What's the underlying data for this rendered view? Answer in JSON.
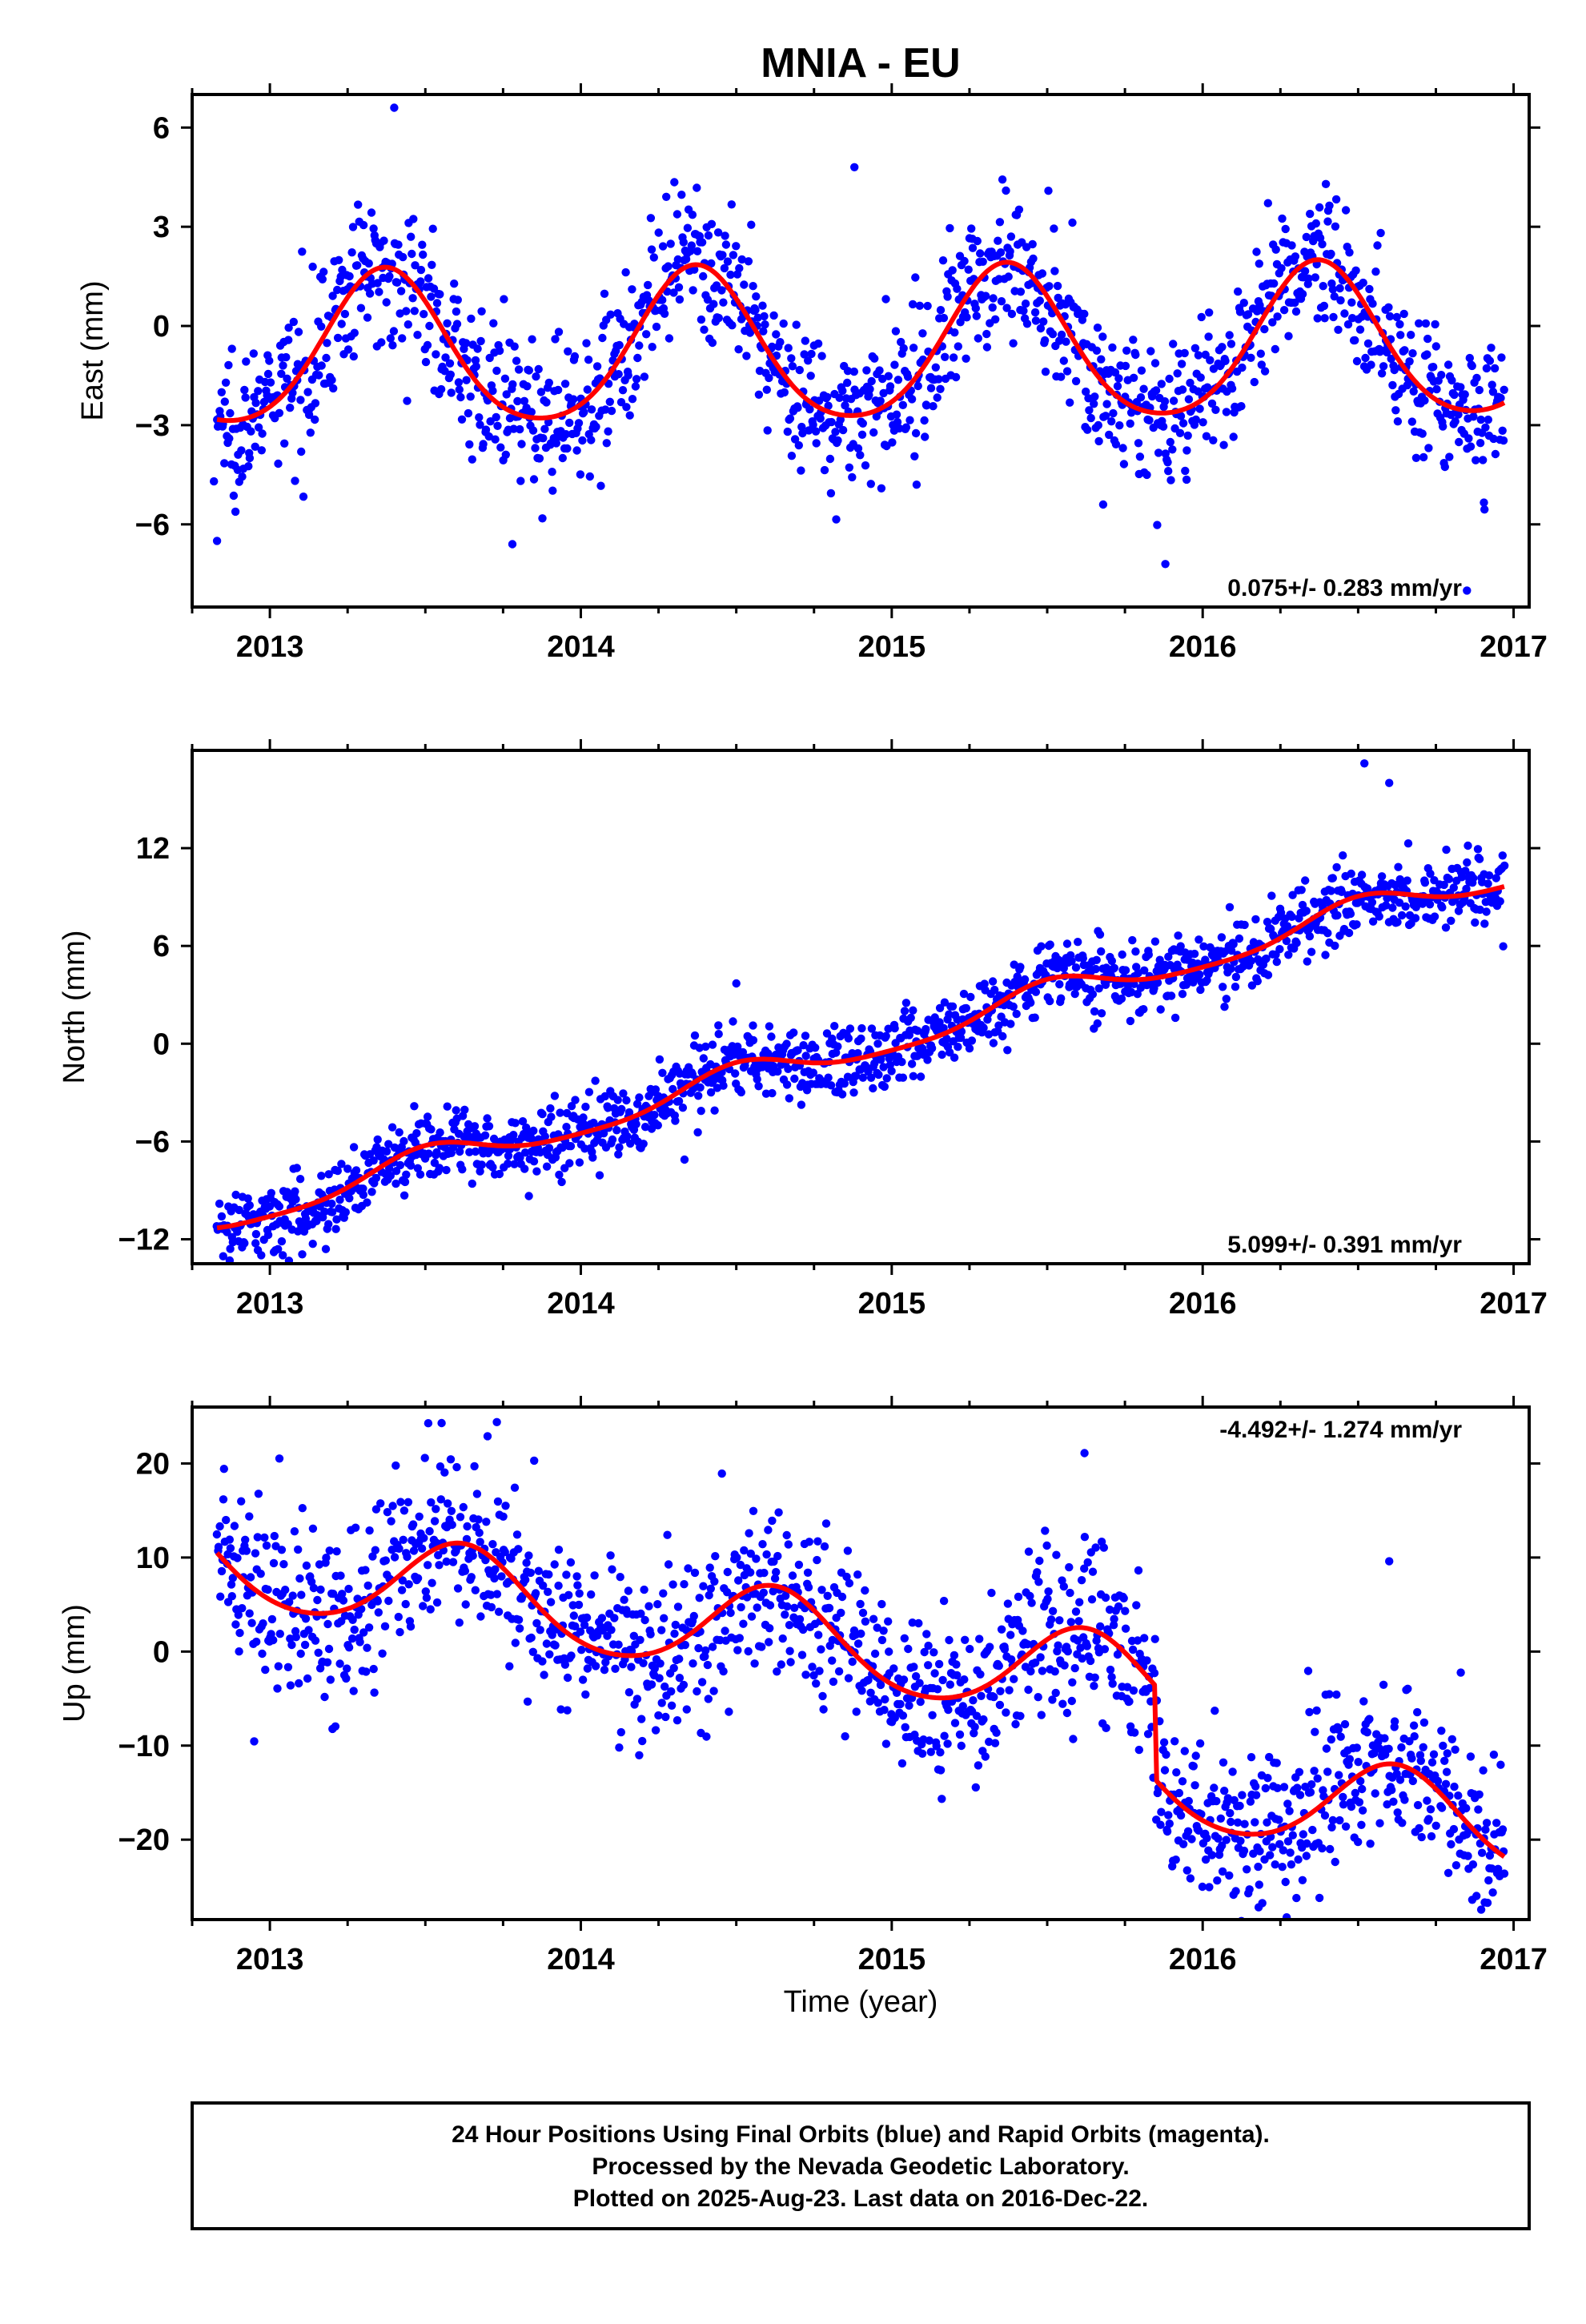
{
  "title": "MNIA - EU",
  "xlabel": "Time (year)",
  "footer": {
    "line1": "24 Hour Positions Using Final Orbits (blue) and Rapid Orbits (magenta).",
    "line2": "Processed by the Nevada Geodetic Laboratory.",
    "line3": "Plotted on 2025-Aug-23. Last data on 2016-Dec-22."
  },
  "colors": {
    "final_orbits": "#0000ff",
    "model_fit": "#ff0000",
    "frame": "#000000"
  },
  "chart_data": [
    {
      "type": "scatter",
      "component": "east",
      "ylabel": "East (mm)",
      "xlim": [
        2012.75,
        2017.05
      ],
      "ylim": [
        -8.5,
        7.0
      ],
      "xticks": [
        2013,
        2014,
        2015,
        2016,
        2017
      ],
      "xtick_labels": [
        "2013",
        "2014",
        "2015",
        "2016",
        "2017"
      ],
      "yticks": [
        6,
        3,
        0,
        -3,
        -6
      ],
      "ytick_labels": [
        "6",
        "3",
        "0",
        "−3",
        "−6"
      ],
      "rate_text": "0.075+/- 0.283 mm/yr",
      "rate_position": "bottom-right",
      "trend": 0.075,
      "seasonal": {
        "annual_amplitude": 2.3,
        "annual_phase_peak": 0.37,
        "semiannual_amplitude": 0.3,
        "offset": 0.7
      },
      "scatter": 1.1,
      "data_start": 2012.83,
      "data_end": 2016.97,
      "series": [
        {
          "name": "Final Orbits",
          "color": "#0000ff",
          "kind": "points",
          "count": 1450
        },
        {
          "name": "Model",
          "color": "#ff0000",
          "kind": "line"
        }
      ],
      "outliers": [
        {
          "x": 2012.83,
          "y": -6.5
        },
        {
          "x": 2012.82,
          "y": -4.7
        },
        {
          "x": 2013.78,
          "y": -6.6
        },
        {
          "x": 2013.4,
          "y": 6.6
        },
        {
          "x": 2014.88,
          "y": 4.8
        },
        {
          "x": 2015.08,
          "y": -4.8
        },
        {
          "x": 2015.68,
          "y": -5.4
        },
        {
          "x": 2015.88,
          "y": -7.2
        },
        {
          "x": 2016.85,
          "y": -8.0
        }
      ]
    },
    {
      "type": "scatter",
      "component": "north",
      "ylabel": "North (mm)",
      "xlim": [
        2012.75,
        2017.05
      ],
      "ylim": [
        -13.5,
        18.0
      ],
      "xticks": [
        2013,
        2014,
        2015,
        2016,
        2017
      ],
      "xtick_labels": [
        "2013",
        "2014",
        "2015",
        "2016",
        "2017"
      ],
      "yticks": [
        12,
        6,
        0,
        -6,
        -12
      ],
      "ytick_labels": [
        "12",
        "6",
        "0",
        "−6",
        "−12"
      ],
      "rate_text": "5.099+/- 0.391 mm/yr",
      "rate_position": "bottom-right",
      "trend": 5.099,
      "trend_ref_year": 2015.0,
      "trend_ref_value": 0.3,
      "seasonal": {
        "annual_amplitude": 0.9,
        "annual_phase_peak": 0.5,
        "semiannual_amplitude": 0.2,
        "offset": 0
      },
      "scatter": 1.1,
      "data_start": 2012.83,
      "data_end": 2016.97,
      "series": [
        {
          "name": "Final Orbits",
          "color": "#0000ff",
          "kind": "points",
          "count": 1450
        },
        {
          "name": "Model",
          "color": "#ff0000",
          "kind": "line"
        }
      ],
      "outliers": [
        {
          "x": 2013.18,
          "y": -12.6
        },
        {
          "x": 2014.5,
          "y": 3.7
        },
        {
          "x": 2016.52,
          "y": 17.2
        },
        {
          "x": 2016.6,
          "y": 16.0
        }
      ]
    },
    {
      "type": "scatter",
      "component": "up",
      "ylabel": "Up (mm)",
      "xlim": [
        2012.75,
        2017.05
      ],
      "ylim": [
        -28.5,
        26.0
      ],
      "xticks": [
        2013,
        2014,
        2015,
        2016,
        2017
      ],
      "xtick_labels": [
        "2013",
        "2014",
        "2015",
        "2016",
        "2017"
      ],
      "yticks": [
        20,
        10,
        0,
        -10,
        -20
      ],
      "ytick_labels": [
        "20",
        "10",
        "0",
        "−10",
        "−20"
      ],
      "rate_text": "-4.492+/- 1.274 mm/yr",
      "rate_position": "top-right",
      "trend": -4.492,
      "trend_ref_year": 2015.0,
      "trend_ref_value": 0.0,
      "seasonal": {
        "annual_amplitude": 4.8,
        "annual_phase_peak": 0.62,
        "semiannual_amplitude": 0.5,
        "offset": 0
      },
      "offset_step": {
        "year": 2015.85,
        "value": -10.0
      },
      "scatter": 4.5,
      "data_start": 2012.83,
      "data_end": 2016.97,
      "series": [
        {
          "name": "Final Orbits",
          "color": "#0000ff",
          "kind": "points",
          "count": 1450
        },
        {
          "name": "Model",
          "color": "#ff0000",
          "kind": "line"
        }
      ],
      "outliers": [
        {
          "x": 2013.7,
          "y": 22.9
        },
        {
          "x": 2013.73,
          "y": 24.4
        },
        {
          "x": 2013.85,
          "y": 20.3
        },
        {
          "x": 2015.62,
          "y": 21.1
        },
        {
          "x": 2016.18,
          "y": -27.2
        },
        {
          "x": 2016.6,
          "y": 9.6
        }
      ]
    }
  ]
}
